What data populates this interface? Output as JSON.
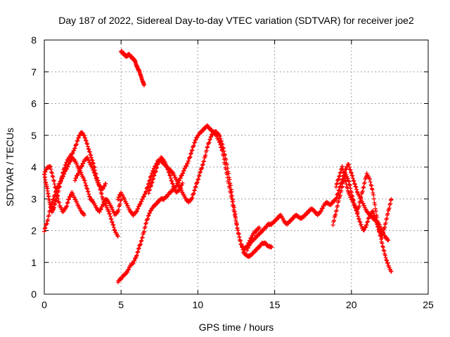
{
  "chart_data": {
    "type": "scatter",
    "title": "Day 187 of 2022, Sidereal Day-to-day VTEC variation (SDTVAR) for receiver joe2",
    "xlabel": "GPS time / hours",
    "ylabel": "SDTVAR / TECUs",
    "xlim": [
      0,
      25
    ],
    "ylim": [
      0,
      8
    ],
    "xticks": [
      0,
      5,
      10,
      15,
      20,
      25
    ],
    "yticks": [
      0,
      1,
      2,
      3,
      4,
      5,
      6,
      7,
      8
    ],
    "grid": true,
    "marker": "+",
    "series": [
      {
        "name": "SDTVAR",
        "color": "#ff0000",
        "tracks": [
          {
            "x": [
              0.0,
              0.1,
              0.2,
              0.3,
              0.4,
              0.5,
              0.6,
              0.8,
              1.0,
              1.2,
              1.4,
              1.6,
              1.8,
              2.0,
              2.2,
              2.4,
              2.6,
              2.8,
              3.0,
              3.2,
              3.4,
              3.6,
              3.8,
              4.0,
              4.2,
              4.4,
              4.6,
              4.8
            ],
            "y": [
              3.8,
              3.5,
              3.3,
              3.0,
              2.8,
              2.6,
              2.7,
              3.0,
              3.4,
              3.8,
              4.1,
              4.3,
              4.4,
              4.6,
              4.9,
              5.1,
              5.0,
              4.7,
              4.4,
              4.1,
              3.7,
              3.4,
              3.0,
              2.8,
              2.6,
              2.3,
              2.0,
              1.8
            ]
          },
          {
            "x": [
              0.0,
              0.2,
              0.4,
              0.6,
              0.8,
              1.0,
              1.2,
              1.4,
              1.6,
              1.8,
              2.0,
              2.2,
              2.4,
              2.6,
              2.8,
              3.0,
              3.2,
              3.4,
              3.6,
              3.8,
              4.0,
              4.2,
              4.4,
              4.6,
              4.8,
              5.0
            ],
            "y": [
              2.0,
              2.3,
              2.7,
              3.0,
              3.3,
              3.5,
              3.7,
              3.9,
              4.1,
              4.3,
              4.2,
              4.0,
              3.8,
              3.6,
              3.3,
              3.0,
              2.9,
              2.7,
              2.6,
              2.8,
              3.0,
              2.9,
              2.7,
              2.5,
              2.6,
              3.0
            ]
          },
          {
            "x": [
              0.0,
              0.2,
              0.4,
              0.6,
              0.8,
              1.0,
              1.2,
              1.4,
              1.6,
              1.8,
              2.0,
              2.2,
              2.4,
              2.6
            ],
            "y": [
              3.8,
              4.0,
              4.0,
              3.6,
              3.2,
              2.8,
              2.6,
              2.7,
              3.0,
              3.2,
              3.0,
              2.8,
              2.6,
              2.5
            ]
          },
          {
            "x": [
              2.0,
              2.2,
              2.4,
              2.6,
              2.8,
              3.0,
              3.2,
              3.4,
              3.6,
              3.8,
              4.0
            ],
            "y": [
              3.6,
              3.8,
              4.0,
              4.2,
              4.3,
              4.1,
              3.9,
              3.6,
              3.4,
              3.3,
              3.5
            ]
          },
          {
            "x": [
              5.0,
              5.1,
              5.2,
              5.3,
              5.4,
              5.5,
              5.6,
              5.7,
              5.8,
              5.9,
              6.0,
              6.1,
              6.2,
              6.3,
              6.4,
              6.5
            ],
            "y": [
              7.65,
              7.6,
              7.55,
              7.5,
              7.5,
              7.55,
              7.5,
              7.45,
              7.4,
              7.35,
              7.2,
              7.1,
              7.0,
              6.85,
              6.7,
              6.6
            ]
          },
          {
            "x": [
              4.8,
              5.0,
              5.2,
              5.4,
              5.6,
              5.8,
              6.0,
              6.2,
              6.4,
              6.6,
              6.8,
              7.0,
              7.2,
              7.4,
              7.6,
              7.8,
              8.0,
              8.2,
              8.4,
              8.6,
              8.8,
              9.0,
              9.2,
              9.4,
              9.6,
              9.8,
              10.0,
              10.2,
              10.4,
              10.6,
              10.8,
              11.0,
              11.2,
              11.4,
              11.6,
              11.8,
              12.0,
              12.2,
              12.4,
              12.6,
              12.8,
              13.0,
              13.2,
              13.4,
              13.6,
              13.8,
              14.0,
              14.2,
              14.4,
              14.6,
              14.8
            ],
            "y": [
              0.4,
              0.5,
              0.6,
              0.7,
              0.9,
              1.0,
              1.2,
              1.5,
              1.8,
              2.2,
              2.5,
              2.7,
              2.8,
              2.9,
              3.0,
              3.0,
              3.1,
              3.2,
              3.3,
              3.4,
              3.6,
              3.8,
              4.0,
              4.2,
              4.5,
              4.8,
              5.0,
              5.1,
              5.2,
              5.3,
              5.2,
              5.1,
              5.0,
              4.8,
              4.5,
              4.0,
              3.5,
              3.0,
              2.5,
              2.0,
              1.6,
              1.3,
              1.2,
              1.2,
              1.3,
              1.4,
              1.5,
              1.6,
              1.6,
              1.5,
              1.5
            ]
          },
          {
            "x": [
              4.8,
              5.0,
              5.2,
              5.4,
              5.6,
              5.8,
              6.0,
              6.2,
              6.4,
              6.6,
              6.8,
              7.0,
              7.2,
              7.4,
              7.6,
              7.8,
              8.0,
              8.2,
              8.4,
              8.6,
              8.8,
              9.0,
              9.2,
              9.4,
              9.6,
              9.8,
              10.0,
              10.2,
              10.4,
              10.6,
              10.8,
              11.0,
              11.2,
              11.4,
              11.6,
              11.8,
              12.0,
              12.2,
              12.4,
              12.6,
              12.8,
              13.0,
              13.2,
              13.4,
              13.6,
              13.8,
              14.0
            ],
            "y": [
              3.0,
              3.2,
              3.0,
              2.8,
              2.6,
              2.5,
              2.6,
              2.8,
              3.0,
              3.2,
              3.5,
              3.8,
              4.0,
              4.2,
              4.2,
              4.1,
              4.0,
              3.9,
              3.8,
              3.6,
              3.4,
              3.2,
              3.0,
              2.9,
              3.0,
              3.3,
              3.6,
              3.9,
              4.2,
              4.6,
              4.9,
              5.1,
              5.1,
              5.0,
              4.7,
              4.3,
              3.8,
              3.2,
              2.6,
              2.0,
              1.6,
              1.4,
              1.5,
              1.7,
              1.9,
              2.0,
              2.1
            ]
          },
          {
            "x": [
              6.8,
              7.0,
              7.2,
              7.4,
              7.6,
              7.8,
              8.0,
              8.2,
              8.4,
              8.6,
              8.8,
              9.0
            ],
            "y": [
              3.2,
              3.5,
              3.8,
              4.1,
              4.3,
              4.2,
              4.0,
              3.7,
              3.4,
              3.2,
              3.3,
              3.5
            ]
          },
          {
            "x": [
              13.2,
              13.4,
              13.6,
              13.8,
              14.0,
              14.2,
              14.4,
              14.6,
              14.8,
              15.0,
              15.2,
              15.4,
              15.6,
              15.8,
              16.0,
              16.2,
              16.4,
              16.6,
              16.8,
              17.0,
              17.2,
              17.4,
              17.6,
              17.8,
              18.0,
              18.2,
              18.4,
              18.6,
              18.8,
              19.0,
              19.2,
              19.4,
              19.6,
              19.8,
              20.0,
              20.2,
              20.4,
              20.6,
              20.8,
              21.0,
              21.2,
              21.4,
              21.6,
              21.8,
              22.0,
              22.2,
              22.4
            ],
            "y": [
              1.4,
              1.6,
              1.7,
              1.8,
              1.9,
              2.0,
              2.1,
              2.2,
              2.2,
              2.3,
              2.4,
              2.5,
              2.3,
              2.2,
              2.3,
              2.4,
              2.5,
              2.4,
              2.4,
              2.5,
              2.6,
              2.7,
              2.6,
              2.5,
              2.6,
              2.8,
              2.9,
              2.8,
              2.9,
              3.0,
              3.3,
              3.6,
              3.9,
              4.1,
              3.8,
              3.5,
              3.2,
              3.0,
              2.8,
              2.6,
              2.5,
              2.4,
              2.3,
              2.2,
              2.0,
              1.8,
              1.7
            ]
          },
          {
            "x": [
              18.8,
              19.0,
              19.2,
              19.4,
              19.6,
              19.8,
              20.0,
              20.2,
              20.4,
              20.6,
              20.8,
              21.0,
              21.2,
              21.4,
              21.6,
              21.8,
              22.0,
              22.2,
              22.4,
              22.6
            ],
            "y": [
              2.2,
              2.6,
              3.0,
              3.4,
              3.8,
              3.6,
              3.2,
              2.8,
              2.6,
              3.0,
              3.4,
              3.8,
              3.6,
              3.2,
              2.6,
              2.0,
              1.6,
              1.2,
              0.9,
              0.7
            ]
          },
          {
            "x": [
              19.0,
              19.2,
              19.4,
              19.6,
              19.8,
              20.0,
              20.2,
              20.4,
              20.6,
              20.8,
              21.0,
              21.2,
              21.4,
              21.6,
              21.8,
              22.0,
              22.2,
              22.4,
              22.6
            ],
            "y": [
              3.4,
              3.7,
              4.0,
              3.6,
              3.2,
              3.0,
              2.8,
              2.5,
              2.2,
              2.0,
              2.2,
              2.5,
              2.6,
              2.3,
              2.0,
              1.8,
              2.2,
              2.6,
              3.0
            ]
          }
        ]
      }
    ]
  }
}
